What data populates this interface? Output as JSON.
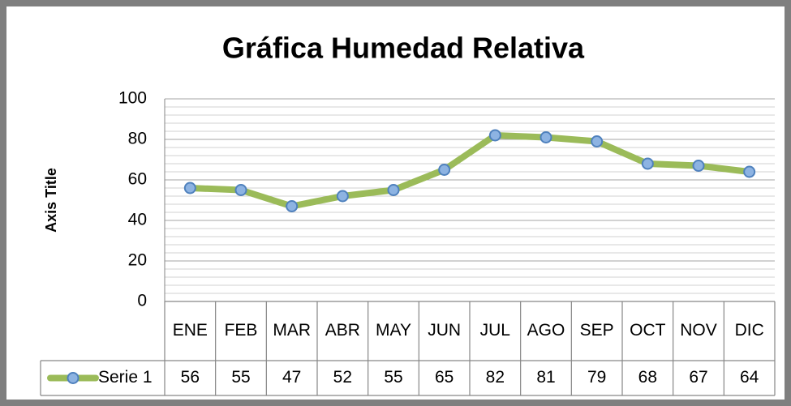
{
  "chart_data": {
    "type": "line",
    "title": "Gráfica Humedad Relativa",
    "y_axis_label": "Axis Title",
    "categories": [
      "ENE",
      "FEB",
      "MAR",
      "ABR",
      "MAY",
      "JUN",
      "JUL",
      "AGO",
      "SEP",
      "OCT",
      "NOV",
      "DIC"
    ],
    "series": [
      {
        "name": "Serie 1",
        "color": "#9bbb59",
        "marker_color": "#4f81bd",
        "values": [
          56,
          55,
          47,
          52,
          55,
          65,
          82,
          81,
          79,
          68,
          67,
          64
        ]
      }
    ],
    "ylim": [
      0,
      100
    ],
    "yticks": [
      0,
      20,
      40,
      60,
      80,
      100
    ],
    "yminorticks": [
      4,
      8,
      12,
      16,
      24,
      28,
      32,
      36,
      44,
      48,
      52,
      56,
      64,
      68,
      72,
      76,
      84,
      88,
      92,
      96
    ],
    "grid": true,
    "data_table": true
  }
}
